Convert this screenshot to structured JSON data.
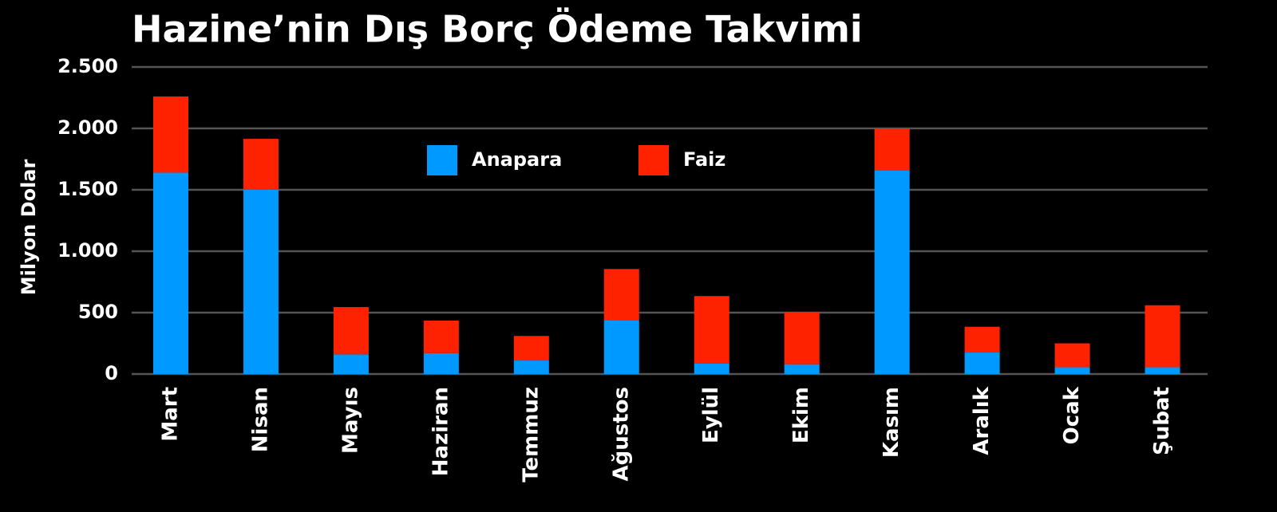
{
  "chart_data": {
    "type": "stacked_bar",
    "title": "Hazine’nin Dış Borç Ödeme Takvimi",
    "y_axis_label": "Milyon Dolar",
    "categories": [
      "Mart",
      "Nisan",
      "Mayıs",
      "Haziran",
      "Temmuz",
      "Ağustos",
      "Eylül",
      "Ekim",
      "Kasım",
      "Aralık",
      "Ocak",
      "Şubat"
    ],
    "series": [
      {
        "name": "Anapara",
        "color": "#0099ff",
        "values": [
          1640,
          1500,
          160,
          170,
          110,
          440,
          85,
          80,
          1660,
          175,
          55,
          55
        ]
      },
      {
        "name": "Faiz",
        "color": "#ff2200",
        "values": [
          620,
          415,
          385,
          265,
          200,
          415,
          550,
          425,
          340,
          210,
          195,
          505
        ]
      }
    ],
    "ylim": [
      0,
      2500
    ],
    "yticks": [
      0,
      500,
      {
        "value": 1000,
        "label": "1.000"
      },
      {
        "value": 1500,
        "label": "1.500"
      },
      {
        "value": 2000,
        "label": "2.000"
      },
      {
        "value": 2500,
        "label": "2.500"
      }
    ],
    "grid": true,
    "legend": "top"
  }
}
